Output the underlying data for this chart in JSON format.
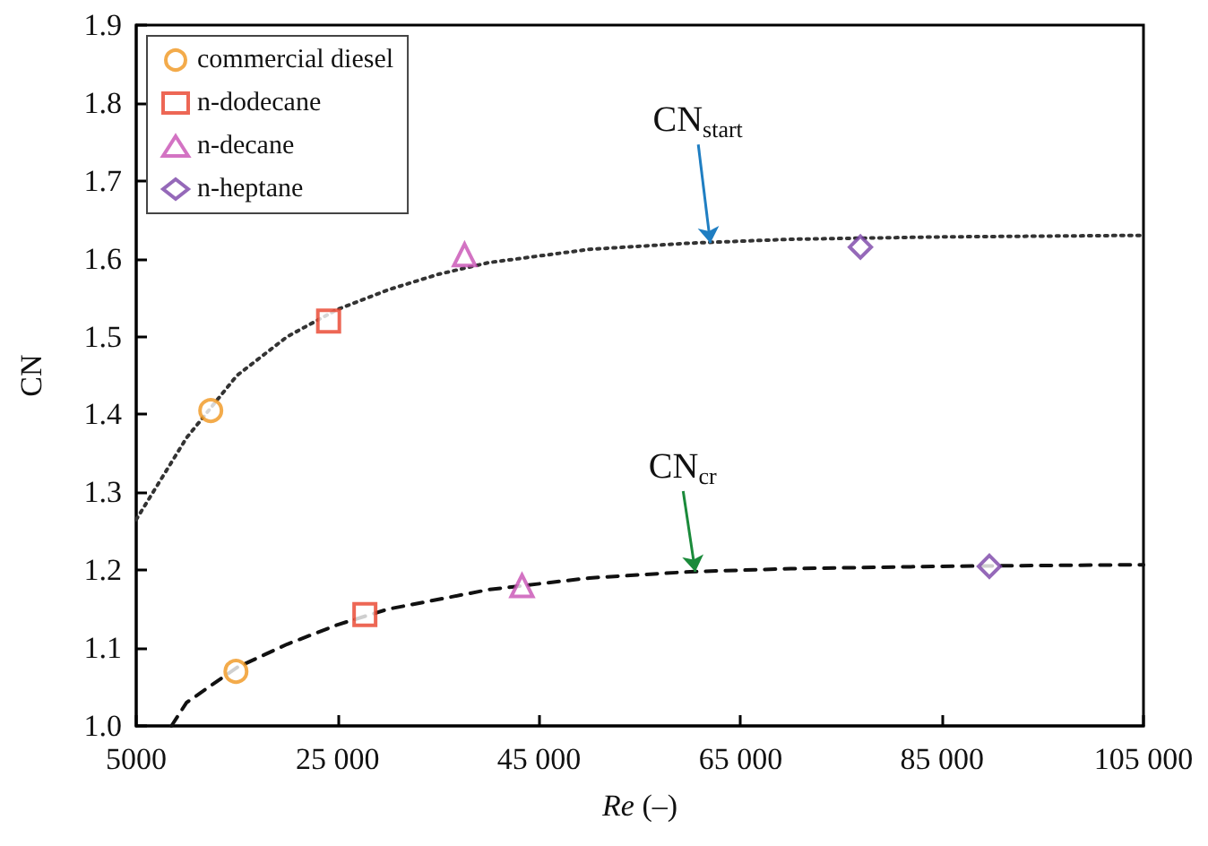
{
  "chart_data": {
    "type": "scatter",
    "xlabel": "Re (–)",
    "ylabel": "CN",
    "xlim": [
      5000,
      105000
    ],
    "xticks": [
      5000,
      {
        "value": 25000,
        "label": "25 000"
      },
      {
        "value": 45000,
        "label": "45 000"
      },
      {
        "value": 65000,
        "label": "65 000"
      },
      {
        "value": 85000,
        "label": "85 000"
      },
      {
        "value": 105000,
        "label": "105 000"
      }
    ],
    "ylim": [
      1.0,
      1.9
    ],
    "yticks": [
      {
        "value": 1.0,
        "label": "1.0"
      },
      {
        "value": 1.1,
        "label": "1.1"
      },
      {
        "value": 1.2,
        "label": "1.2"
      },
      {
        "value": 1.3,
        "label": "1.3"
      },
      {
        "value": 1.4,
        "label": "1.4"
      },
      {
        "value": 1.5,
        "label": "1.5"
      },
      {
        "value": 1.6,
        "label": "1.6"
      },
      {
        "value": 1.7,
        "label": "1.7"
      },
      {
        "value": 1.8,
        "label": "1.8"
      },
      {
        "value": 1.9,
        "label": "1.9"
      }
    ],
    "grid": false,
    "legend": "top left",
    "series": [
      {
        "name": "commercial diesel",
        "color": "#f0961e",
        "marker": "circle",
        "x": [
          12400,
          14900
        ],
        "values": [
          1.405,
          1.07
        ]
      },
      {
        "name": "n-dodecane",
        "color": "#e8412a",
        "marker": "square",
        "x": [
          24100,
          27700
        ],
        "values": [
          1.52,
          1.143
        ]
      },
      {
        "name": "n-decane",
        "color": "#c850b4",
        "marker": "triangle",
        "x": [
          37600,
          43300
        ],
        "values": [
          1.605,
          1.18
        ]
      },
      {
        "name": "n-heptane",
        "color": "#7a44a8",
        "marker": "diamond",
        "x": [
          76900,
          89700
        ],
        "values": [
          1.615,
          1.205
        ]
      },
      {
        "type": "line",
        "color": "#333333",
        "marker": "none",
        "line_style": "dotted",
        "x": [
          5000,
          10000,
          15000,
          20000,
          25000,
          30000,
          35000,
          40000,
          50000,
          60000,
          70000,
          85000,
          105000
        ],
        "values": [
          1.265,
          1.37,
          1.45,
          1.5,
          1.535,
          1.56,
          1.58,
          1.595,
          1.612,
          1.62,
          1.625,
          1.628,
          1.63
        ]
      },
      {
        "type": "line",
        "color": "#111111",
        "marker": "none",
        "line_style": "dashed",
        "x": [
          8500,
          10000,
          15000,
          20000,
          25000,
          30000,
          40000,
          50000,
          60000,
          70000,
          85000,
          105000
        ],
        "values": [
          1.0,
          1.03,
          1.075,
          1.105,
          1.13,
          1.15,
          1.175,
          1.19,
          1.198,
          1.202,
          1.205,
          1.207
        ]
      }
    ],
    "annotations": [
      {
        "text": "CN$_{start}$",
        "x": 62000,
        "y": 1.62
      },
      {
        "text": "CN$_{cr}$",
        "x": 60500,
        "y": 1.198
      }
    ]
  }
}
